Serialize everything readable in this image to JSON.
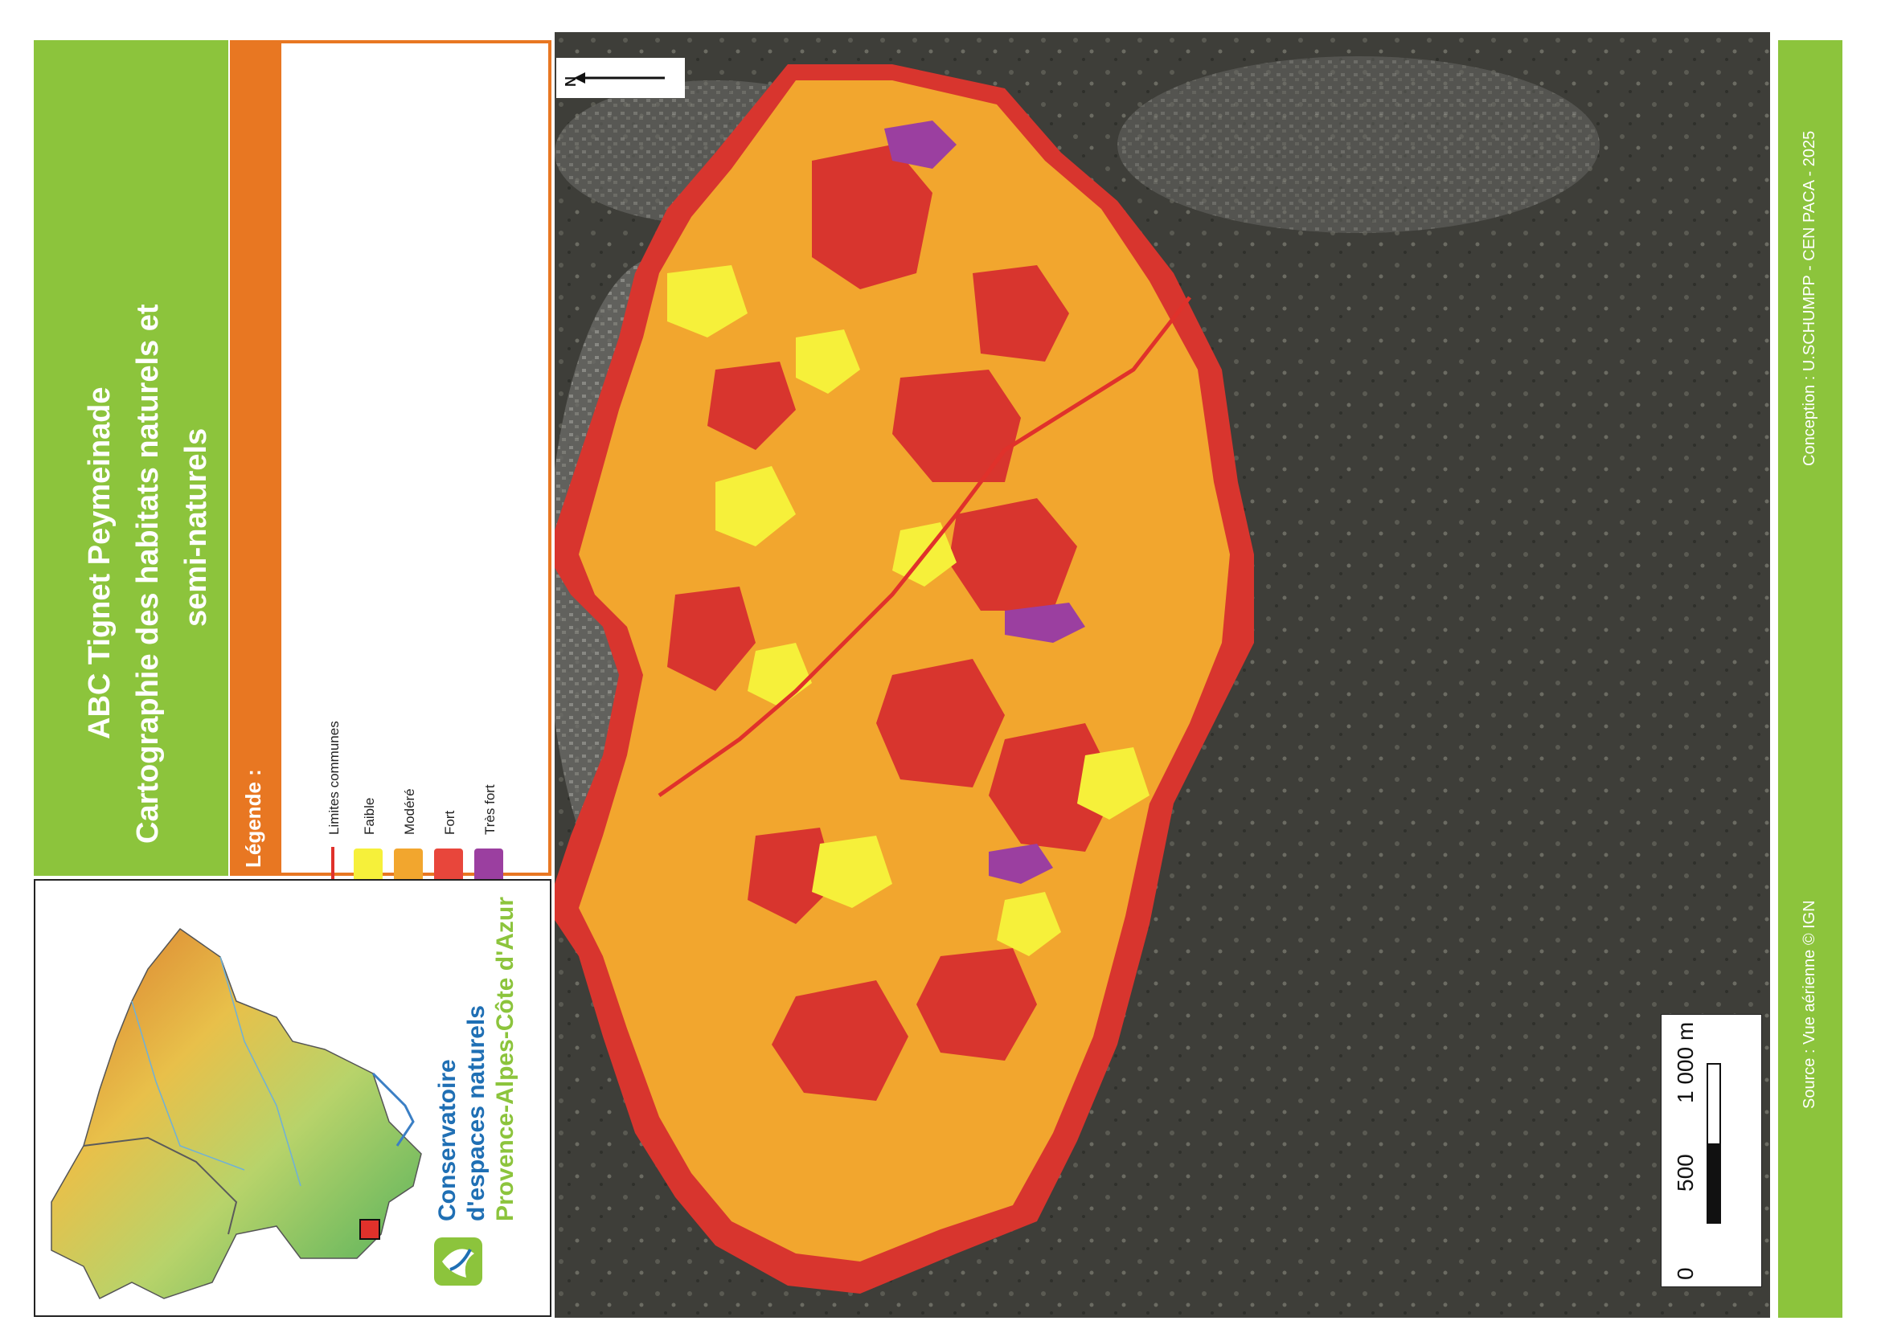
{
  "title": {
    "line1": "ABC Tignet Peymeinade",
    "line2": "Cartographie des habitats naturels et",
    "line3": "semi-naturels"
  },
  "legend": {
    "heading": "Légende :",
    "items": [
      {
        "label": "Limites communes",
        "symbol": "line",
        "color": "#e0312b"
      },
      {
        "label": "Faible",
        "symbol": "fill",
        "color": "#f6f03a"
      },
      {
        "label": "Modéré",
        "symbol": "fill",
        "color": "#f2a62e"
      },
      {
        "label": "Fort",
        "symbol": "fill",
        "color": "#e8463b"
      },
      {
        "label": "Très fort",
        "symbol": "fill",
        "color": "#9b3fa0"
      }
    ]
  },
  "north_arrow": {
    "label": "N"
  },
  "scale_bar": {
    "labels": [
      "0",
      "500",
      "1 000 m"
    ]
  },
  "credits": {
    "conception": "Conception : U.SCHUMPP - CEN PACA - 2025",
    "source": "Source : Vue aérienne © IGN"
  },
  "logo": {
    "line1": "Conservatoire",
    "line2": "d'espaces naturels",
    "line3": "Provence-Alpes-Côte d'Azur"
  },
  "colors": {
    "brand_green": "#8cc43c",
    "legend_orange": "#e87722",
    "faible": "#f6f03a",
    "modere": "#f2a62e",
    "fort": "#e8463b",
    "tres_fort": "#9b3fa0",
    "limite": "#e0312b"
  }
}
